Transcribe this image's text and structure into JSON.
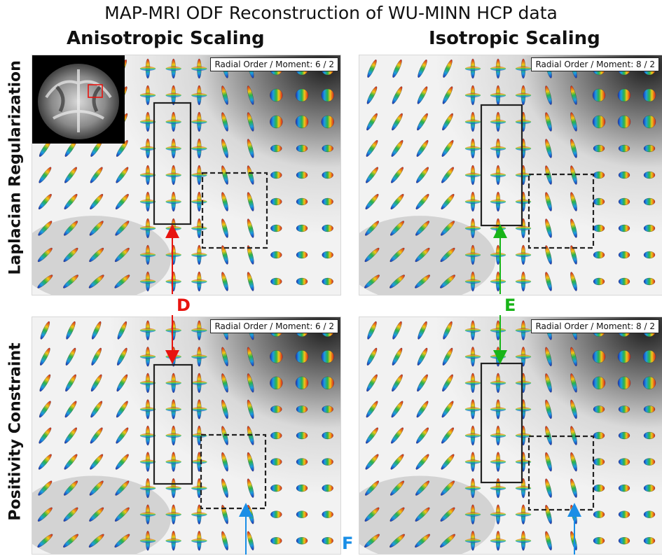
{
  "figure": {
    "title": "MAP-MRI ODF Reconstruction of WU-MINN HCP data",
    "columns": [
      "Anisotropic Scaling",
      "Isotropic Scaling"
    ],
    "rows": [
      "Laplacian Regularization",
      "Positivity Constraint"
    ]
  },
  "panels": [
    {
      "row": 0,
      "col": 0,
      "badge": "Radial Order / Moment: 6 / 2",
      "inset": true
    },
    {
      "row": 0,
      "col": 1,
      "badge": "Radial Order / Moment: 8 / 2",
      "inset": false
    },
    {
      "row": 1,
      "col": 0,
      "badge": "Radial Order / Moment: 6 / 2",
      "inset": false
    },
    {
      "row": 1,
      "col": 1,
      "badge": "Radial Order / Moment: 8 / 2",
      "inset": false
    }
  ],
  "annotations": [
    {
      "label": "D",
      "color": "#e8140f"
    },
    {
      "label": "E",
      "color": "#18b418"
    },
    {
      "label": "F",
      "color": "#1a8ee6"
    }
  ]
}
